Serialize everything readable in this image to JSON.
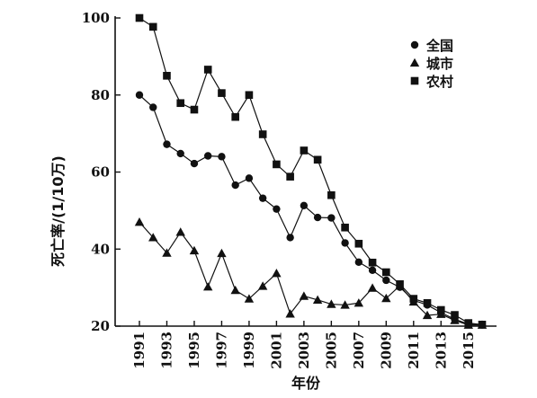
{
  "chart_data": {
    "type": "line",
    "xlabel": "年份",
    "ylabel": "死亡率/(1/10万)",
    "xlim": [
      1991,
      2016
    ],
    "ylim": [
      20,
      100
    ],
    "x_ticks": [
      "1991",
      "1993",
      "1995",
      "1997",
      "1999",
      "2001",
      "2003",
      "2005",
      "2007",
      "2009",
      "2011",
      "2013",
      "2015"
    ],
    "y_ticks": [
      "20",
      "40",
      "60",
      "80",
      "100"
    ],
    "legend_position": "top-right",
    "x": [
      1991,
      1992,
      1993,
      1994,
      1995,
      1996,
      1997,
      1998,
      1999,
      2000,
      2001,
      2002,
      2003,
      2004,
      2005,
      2006,
      2007,
      2008,
      2009,
      2010,
      2011,
      2012,
      2013,
      2014,
      2015,
      2016
    ],
    "series": [
      {
        "name": "全国",
        "marker": "circle",
        "values": [
          80,
          76.8,
          67.2,
          64.8,
          62.2,
          64.2,
          64,
          56.6,
          58.4,
          53.2,
          50.4,
          43,
          51.3,
          48.2,
          48.1,
          41.6,
          36.6,
          34.5,
          31.9,
          30.1,
          26.7,
          25.5,
          23.5,
          21.8,
          20.5,
          20.3
        ]
      },
      {
        "name": "城市",
        "marker": "triangle",
        "values": [
          47,
          43,
          39,
          44.4,
          39.6,
          30.2,
          38.9,
          29.3,
          27.1,
          30.4,
          33.7,
          23.2,
          27.8,
          26.8,
          25.7,
          25.5,
          26,
          29.9,
          27.2,
          30.5,
          26.3,
          22.8,
          23.1,
          21.5,
          20.3,
          20.3
        ]
      },
      {
        "name": "农村",
        "marker": "square",
        "values": [
          100,
          97.7,
          85,
          77.9,
          76.2,
          86.6,
          80.5,
          74.3,
          80,
          69.8,
          62,
          58.8,
          65.6,
          63.2,
          54,
          45.6,
          41.4,
          36.5,
          34,
          30.9,
          27.1,
          26,
          24.2,
          22.9,
          20.8,
          20.4
        ]
      }
    ]
  }
}
